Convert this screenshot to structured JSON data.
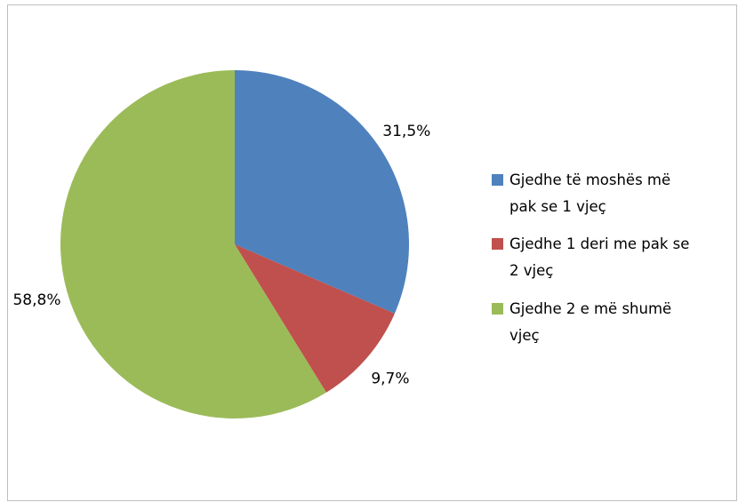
{
  "chart_data": {
    "type": "pie",
    "categories": [
      "Gjedhe të moshës më pak se 1 vjeç",
      "Gjedhe 1 deri me pak se 2 vjeç",
      "Gjedhe 2 e më shumë vjeç"
    ],
    "values": [
      31.5,
      9.7,
      58.8
    ],
    "value_labels": [
      "31,5%",
      "9,7%",
      "58,8%"
    ],
    "colors": [
      "#4f81bd",
      "#c0504d",
      "#9bbb59"
    ],
    "legend": "right"
  }
}
